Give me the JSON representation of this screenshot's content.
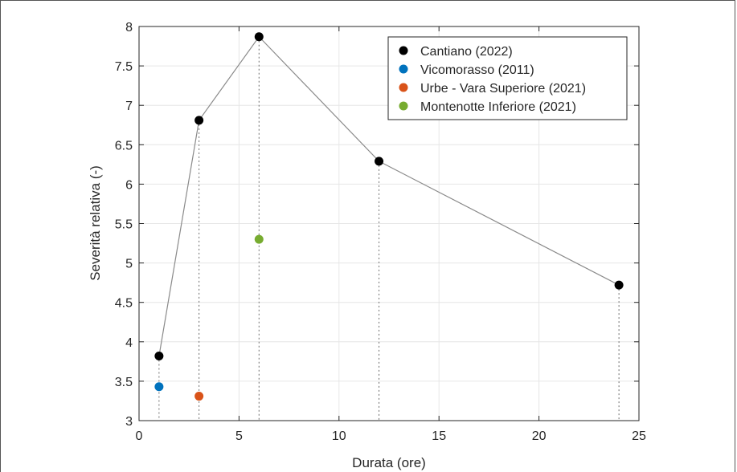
{
  "chart_data": {
    "type": "scatter",
    "xlabel": "Durata (ore)",
    "ylabel": "Severità relativa (-)",
    "xlim": [
      0,
      25
    ],
    "ylim": [
      3,
      8
    ],
    "xticks": [
      0,
      5,
      10,
      15,
      20,
      25
    ],
    "xtick_labels": [
      "0",
      "5",
      "10",
      "15",
      "20",
      "25"
    ],
    "yticks": [
      3,
      3.5,
      4,
      4.5,
      5,
      5.5,
      6,
      6.5,
      7,
      7.5,
      8
    ],
    "ytick_labels": [
      "3",
      "3.5",
      "4",
      "4.5",
      "5",
      "5.5",
      "6",
      "6.5",
      "7",
      "7.5",
      "8"
    ],
    "grid": true,
    "legend_position": "top-right",
    "series": [
      {
        "name": "Cantiano (2022)",
        "color": "#000000",
        "connected": true,
        "x": [
          1,
          3,
          6,
          12,
          24
        ],
        "y": [
          3.82,
          6.81,
          7.87,
          6.29,
          4.72
        ]
      },
      {
        "name": "Vicomorasso (2011)",
        "color": "#0072BD",
        "connected": false,
        "x": [
          1
        ],
        "y": [
          3.43
        ]
      },
      {
        "name": "Urbe - Vara Superiore (2021)",
        "color": "#D95319",
        "connected": false,
        "x": [
          3
        ],
        "y": [
          3.31
        ]
      },
      {
        "name": "Montenotte Inferiore (2021)",
        "color": "#77AC30",
        "connected": false,
        "x": [
          6
        ],
        "y": [
          5.3
        ]
      }
    ]
  }
}
